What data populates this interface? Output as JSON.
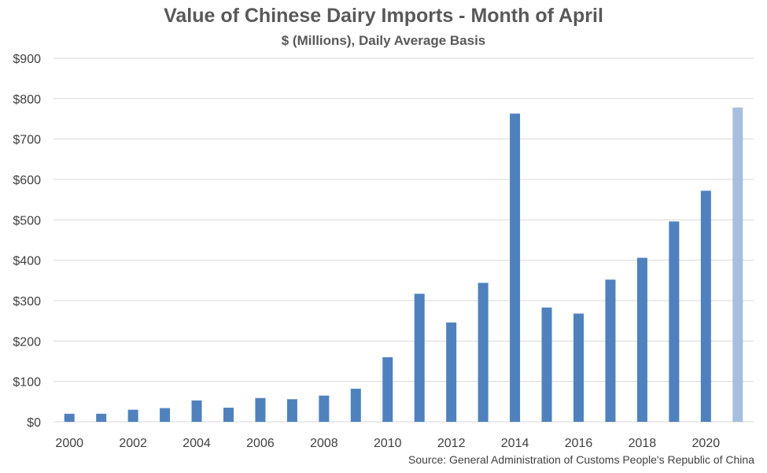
{
  "colors": {
    "bar": "#4f81bd",
    "bar_highlight": "#a7bfdf",
    "grid": "#d9d9d9",
    "text": "#595959"
  },
  "chart_data": {
    "type": "bar",
    "title": "Value of Chinese Dairy Imports - Month of April",
    "subtitle": "$ (Millions), Daily Average Basis",
    "source": "Source: General Administration of Customs People's Republic of China",
    "categories": [
      "2000",
      "2001",
      "2002",
      "2003",
      "2004",
      "2005",
      "2006",
      "2007",
      "2008",
      "2009",
      "2010",
      "2011",
      "2012",
      "2013",
      "2014",
      "2015",
      "2016",
      "2017",
      "2018",
      "2019",
      "2020",
      "2021"
    ],
    "x_tick_labels": [
      "2000",
      "2002",
      "2004",
      "2006",
      "2008",
      "2010",
      "2012",
      "2014",
      "2016",
      "2018",
      "2020"
    ],
    "values": [
      20,
      20,
      30,
      34,
      53,
      35,
      59,
      56,
      65,
      82,
      160,
      317,
      246,
      344,
      763,
      283,
      268,
      352,
      406,
      496,
      572,
      778
    ],
    "highlight_categories": [
      "2021"
    ],
    "ylim": [
      0,
      900
    ],
    "y_ticks": [
      0,
      100,
      200,
      300,
      400,
      500,
      600,
      700,
      800,
      900
    ],
    "y_tick_labels": [
      "$0",
      "$100",
      "$200",
      "$300",
      "$400",
      "$500",
      "$600",
      "$700",
      "$800",
      "$900"
    ],
    "grid": true,
    "legend": "none",
    "xlabel": "",
    "ylabel": ""
  }
}
